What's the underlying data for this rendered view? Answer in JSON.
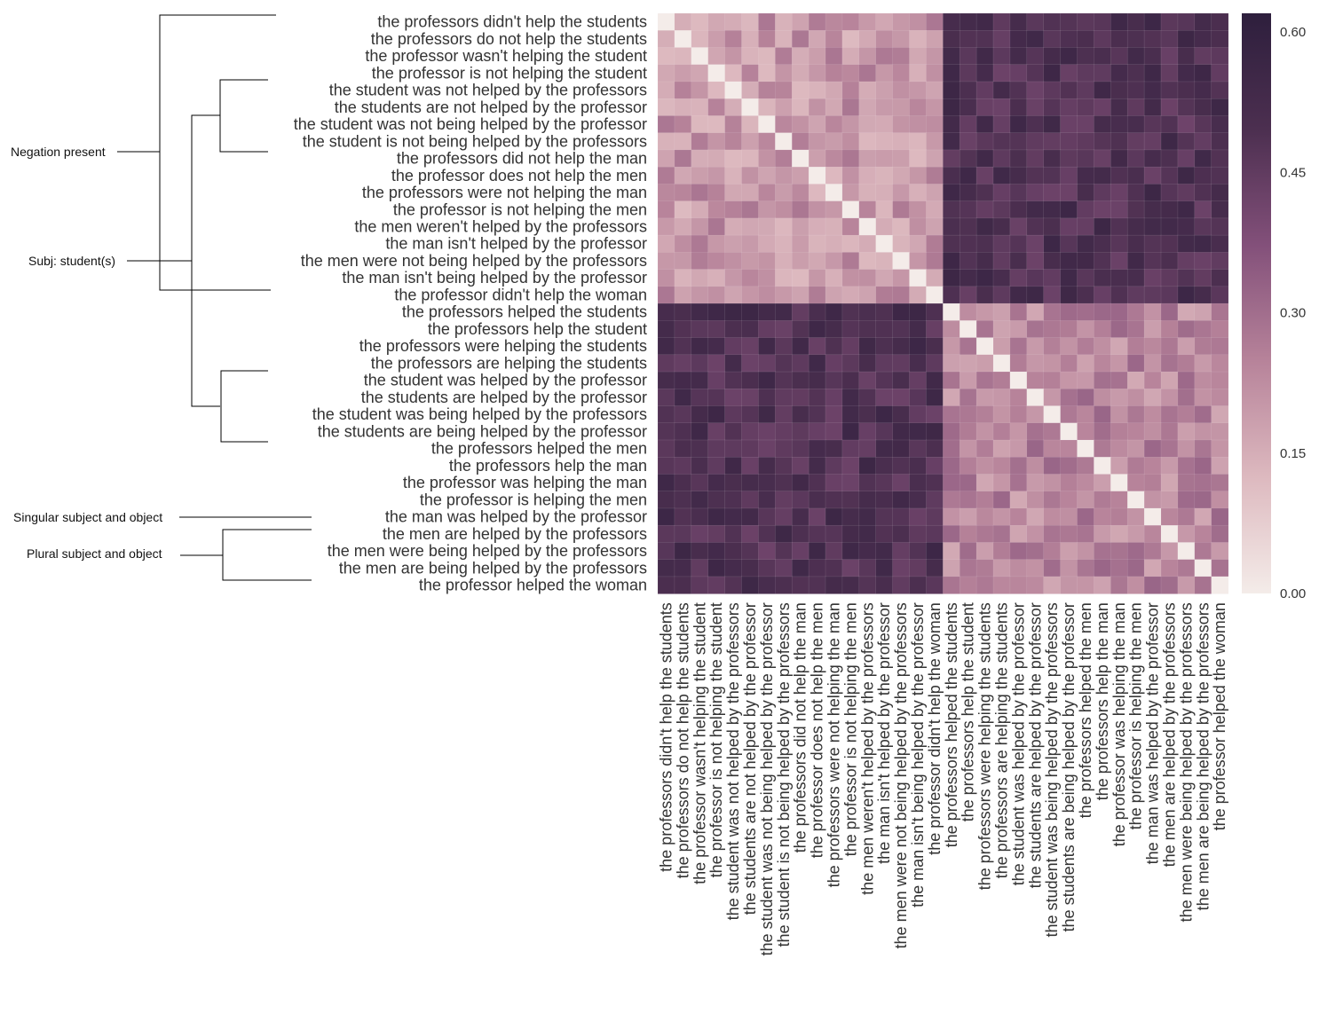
{
  "chart_data": {
    "type": "heatmap",
    "title": "",
    "xlabel": "",
    "ylabel": "",
    "labels": [
      "the professors didn't help the students",
      "the professors do not help the students",
      "the professor wasn't helping the student",
      "the professor is not helping the student",
      "the student was not helped by the professors",
      "the students are not helped by the professor",
      "the student was not being helped by the professor",
      "the student is not being helped by the professors",
      "the professors did not help the man",
      "the professor does not help the men",
      "the professors were not helping the man",
      "the professor is not helping the men",
      "the men weren't helped by the professors",
      "the man isn't helped by the professor",
      "the men were not being helped by the professors",
      "the man isn't being helped by the professor",
      "the professor didn't help the woman",
      "the professors helped the students",
      "the professors help the student",
      "the professors were helping the students",
      "the professors are helping the students",
      "the student was helped by the professor",
      "the students are helped by the professor",
      "the student was being helped by the professors",
      "the students are being helped by the professor",
      "the professors helped the men",
      "the professors help the man",
      "the professor was helping the man",
      "the professor is helping the men",
      "the man was helped by the professor",
      "the men are helped by the professors",
      "the men were being helped by the professors",
      "the men are being helped by the professors",
      "the professor helped the woman"
    ],
    "blocks": {
      "negated_count": 17,
      "within_negated_typical": 0.2,
      "between_groups_typical": 0.49,
      "within_affirmative_typical": 0.24,
      "diagonal": 0.0
    },
    "colorbar": {
      "min": 0.0,
      "max": 0.62,
      "ticks": [
        "0.00",
        "0.15",
        "0.30",
        "0.45",
        "0.60"
      ],
      "colors": [
        "#f4ece9",
        "#ddb9bf",
        "#b7839a",
        "#83507a",
        "#4c2f50",
        "#2e1f3d"
      ]
    },
    "annotations": {
      "negation": "Negation present",
      "subject_student": "Subj: student(s)",
      "singular": "Singular subject and object",
      "plural": "Plural subject and object"
    }
  }
}
